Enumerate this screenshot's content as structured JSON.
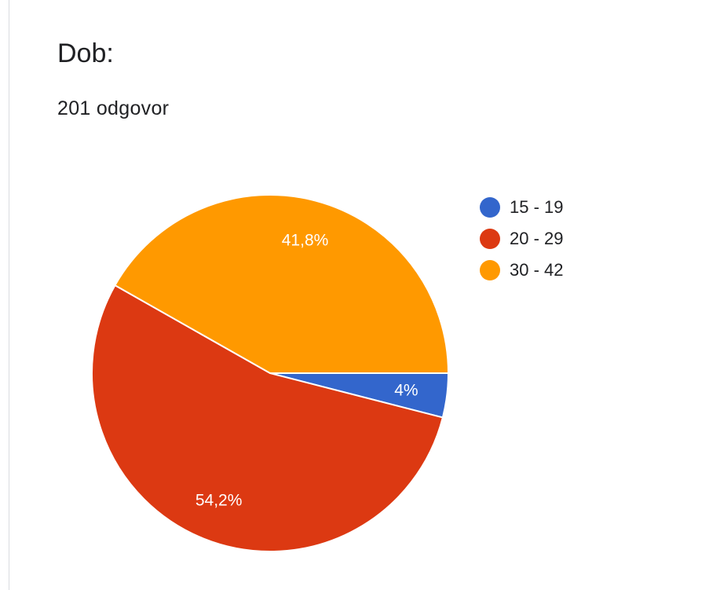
{
  "header": {
    "title": "Dob:",
    "subtitle": "201 odgovor"
  },
  "chart_data": {
    "type": "pie",
    "categories": [
      "15 - 19",
      "20 - 29",
      "30 - 42"
    ],
    "values": [
      4.0,
      54.2,
      41.8
    ],
    "data_labels": [
      "4%",
      "54,2%",
      "41,8%"
    ],
    "colors": [
      "#3366cc",
      "#dc3912",
      "#ff9900"
    ],
    "legend_position": "right",
    "start_direction": "east",
    "direction": "clockwise"
  }
}
